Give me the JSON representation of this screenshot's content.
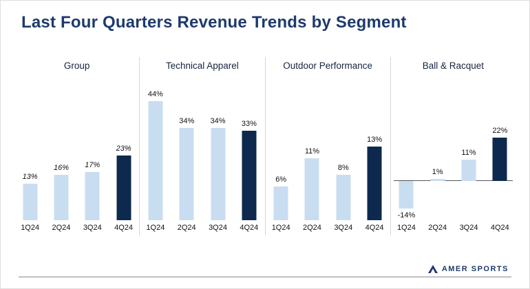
{
  "title": "Last Four Quarters Revenue Trends by Segment",
  "logo": {
    "text": "AMER SPORTS"
  },
  "chart_data": {
    "type": "bar",
    "categories": [
      "1Q24",
      "2Q24",
      "3Q24",
      "4Q24"
    ],
    "colors": {
      "bar_light": "#c9ddf1",
      "bar_dark": "#0d2a4e"
    },
    "legend": "none",
    "grid": false,
    "highlight_last_bar": true,
    "panels": [
      {
        "title": "Group",
        "values": [
          13,
          16,
          17,
          23
        ],
        "labels": [
          "13%",
          "16%",
          "17%",
          "23%"
        ],
        "ylim": [
          0,
          50
        ],
        "label_style": "italic",
        "axis_line": false
      },
      {
        "title": "Technical Apparel",
        "values": [
          44,
          34,
          34,
          33
        ],
        "labels": [
          "44%",
          "34%",
          "34%",
          "33%"
        ],
        "ylim": [
          0,
          52
        ],
        "label_style": "normal",
        "axis_line": false
      },
      {
        "title": "Outdoor Performance",
        "values": [
          6,
          11,
          8,
          13
        ],
        "labels": [
          "6%",
          "11%",
          "8%",
          "13%"
        ],
        "ylim": [
          0,
          25
        ],
        "label_style": "normal",
        "axis_line": false
      },
      {
        "title": "Ball & Racquet",
        "values": [
          -14,
          1,
          11,
          22
        ],
        "labels": [
          "-14%",
          "1%",
          "11%",
          "22%"
        ],
        "ylim": [
          -20,
          52
        ],
        "label_style": "normal",
        "axis_line": true
      }
    ]
  }
}
